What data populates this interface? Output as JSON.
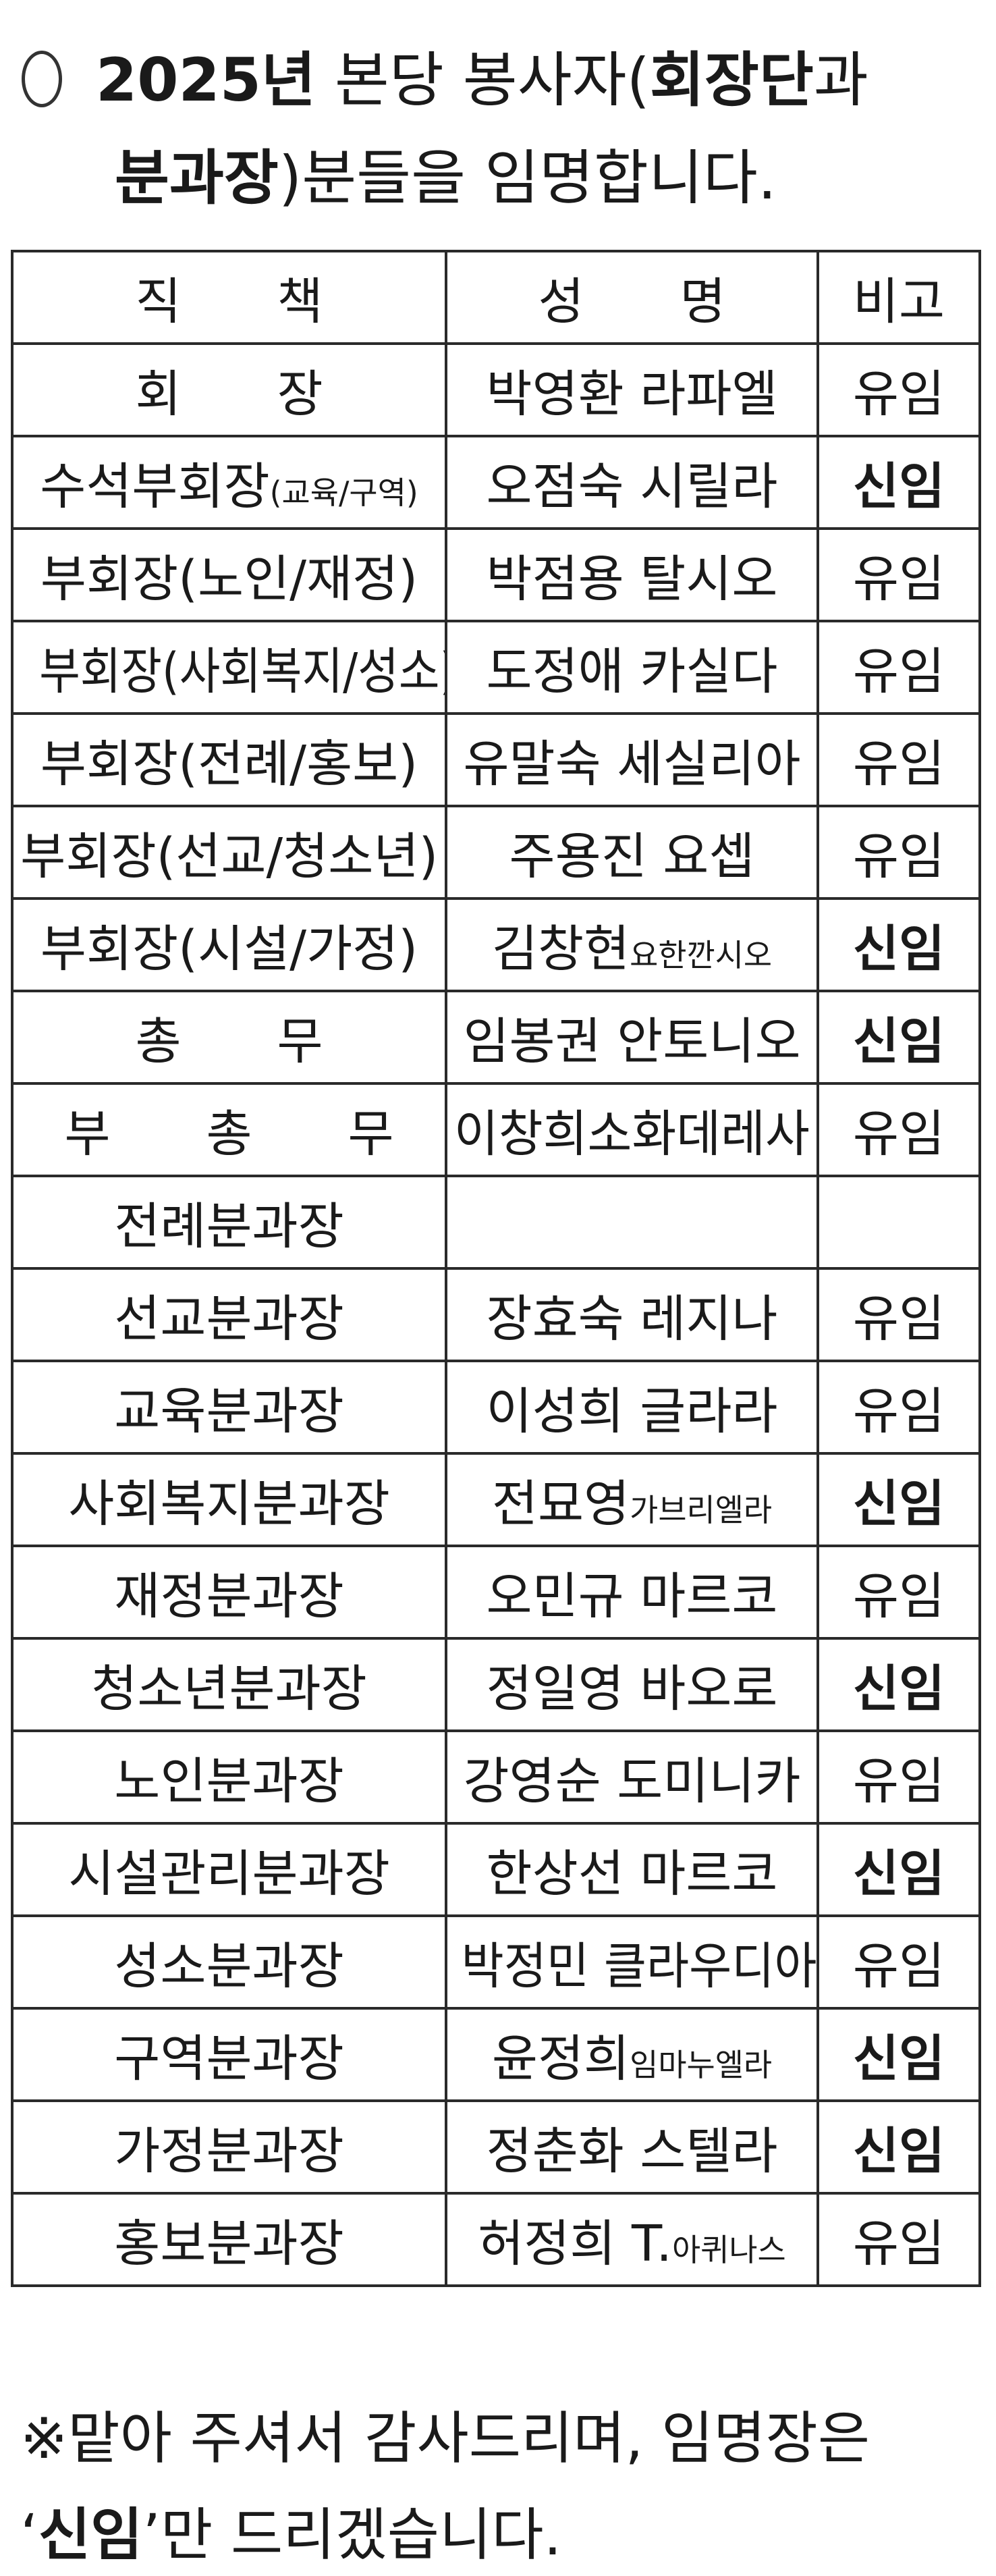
{
  "title": {
    "line1_year": "2025년",
    "line1_mid": " 본당 봉사자(",
    "line1_bold": "회장단",
    "line1_end": "과",
    "line2_bold": "분과장",
    "line2_end": ")분들을 임명합니다."
  },
  "table": {
    "headers": [
      "직 책",
      "성 명",
      "비고"
    ],
    "rows": [
      {
        "position": "회 장",
        "position_small": "",
        "name": "박영환 라파엘",
        "name_small": "",
        "note": "유임",
        "spaced": true
      },
      {
        "position": "수석부회장",
        "position_small": "(교육/구역)",
        "name": "오점숙 시릴라",
        "name_small": "",
        "note": "신임"
      },
      {
        "position": "부회장(노인/재정)",
        "position_small": "",
        "name": "박점용 탈시오",
        "name_small": "",
        "note": "유임"
      },
      {
        "position": "부회장(사회복지/성소)",
        "position_small": "",
        "name": "도정애 카실다",
        "name_small": "",
        "note": "유임"
      },
      {
        "position": "부회장(전례/홍보)",
        "position_small": "",
        "name": "유말숙 세실리아",
        "name_small": "",
        "note": "유임"
      },
      {
        "position": "부회장(선교/청소년)",
        "position_small": "",
        "name": "주용진 요셉",
        "name_small": "",
        "note": "유임"
      },
      {
        "position": "부회장(시설/가정)",
        "position_small": "",
        "name": "김창현",
        "name_small": "요한깐시오",
        "note": "신임"
      },
      {
        "position": "총 무",
        "position_small": "",
        "name": "임봉권 안토니오",
        "name_small": "",
        "note": "신임",
        "spaced": true
      },
      {
        "position": "부 총 무",
        "position_small": "",
        "name": "이창희소화데레사",
        "name_small": "",
        "note": "유임",
        "spaced": true
      },
      {
        "position": "전례분과장",
        "position_small": "",
        "name": "",
        "name_small": "",
        "note": ""
      },
      {
        "position": "선교분과장",
        "position_small": "",
        "name": "장효숙 레지나",
        "name_small": "",
        "note": "유임"
      },
      {
        "position": "교육분과장",
        "position_small": "",
        "name": "이성희 글라라",
        "name_small": "",
        "note": "유임"
      },
      {
        "position": "사회복지분과장",
        "position_small": "",
        "name": "전묘영",
        "name_small": "가브리엘라",
        "note": "신임"
      },
      {
        "position": "재정분과장",
        "position_small": "",
        "name": "오민규 마르코",
        "name_small": "",
        "note": "유임"
      },
      {
        "position": "청소년분과장",
        "position_small": "",
        "name": "정일영 바오로",
        "name_small": "",
        "note": "신임"
      },
      {
        "position": "노인분과장",
        "position_small": "",
        "name": "강영순 도미니카",
        "name_small": "",
        "note": "유임"
      },
      {
        "position": "시설관리분과장",
        "position_small": "",
        "name": "한상선 마르코",
        "name_small": "",
        "note": "신임"
      },
      {
        "position": "성소분과장",
        "position_small": "",
        "name": "박정민 클라우디아",
        "name_small": "",
        "note": "유임"
      },
      {
        "position": "구역분과장",
        "position_small": "",
        "name": "윤정희",
        "name_small": "임마누엘라",
        "note": "신임"
      },
      {
        "position": "가정분과장",
        "position_small": "",
        "name": "정춘화 스텔라",
        "name_small": "",
        "note": "신임"
      },
      {
        "position": "홍보분과장",
        "position_small": "",
        "name": "허정희 T.",
        "name_small": "아퀴나스",
        "note": "유임"
      }
    ]
  },
  "footer": {
    "line1": "※맡아 주셔서 감사드리며, 임명장은",
    "line2_open": "‘",
    "line2_bold": "신임",
    "line2_close": "’",
    "line2_end": "만 드리겠습니다."
  },
  "colors": {
    "text": "#1a1a1a",
    "border": "#2a2a2a",
    "background": "#ffffff"
  }
}
